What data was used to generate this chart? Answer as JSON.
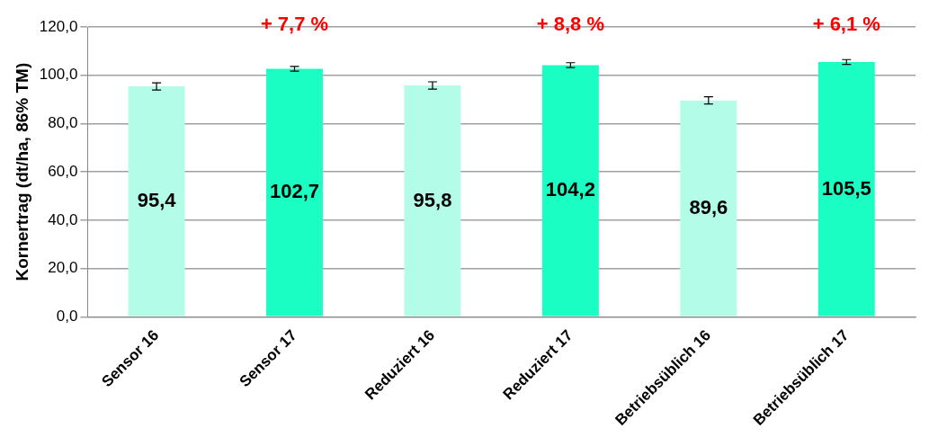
{
  "chart_data": {
    "type": "bar",
    "ylabel": "Kornertrag (dt/ha, 86% TM)",
    "categories": [
      "Sensor 16",
      "Sensor 17",
      "Reduziert 16",
      "Reduziert 17",
      "Betriebsüblich 16",
      "Betriebsüblich 17"
    ],
    "values": [
      95.4,
      102.7,
      95.8,
      104.2,
      89.6,
      105.5
    ],
    "colors": [
      "#b3fde8",
      "#1afec4",
      "#b3fde8",
      "#1afec4",
      "#b3fde8",
      "#1afec4"
    ],
    "value_labels": [
      "95,4",
      "102,7",
      "95,8",
      "104,2",
      "89,6",
      "105,5"
    ],
    "errors": [
      1.5,
      1,
      1.5,
      1,
      1.5,
      1
    ],
    "ylim": [
      0,
      120
    ],
    "yticks": [
      {
        "value": 0,
        "label": "0,0"
      },
      {
        "value": 20,
        "label": "20,0"
      },
      {
        "value": 40,
        "label": "40,0"
      },
      {
        "value": 60,
        "label": "60,0"
      },
      {
        "value": 80,
        "label": "80,0"
      },
      {
        "value": 100,
        "label": "100,0"
      },
      {
        "value": 120,
        "label": "120,0"
      }
    ],
    "grid": "y",
    "legend": false,
    "annotations": [
      "+ 7,7 %",
      "+ 8,8 %",
      "+ 6,1 %"
    ]
  }
}
